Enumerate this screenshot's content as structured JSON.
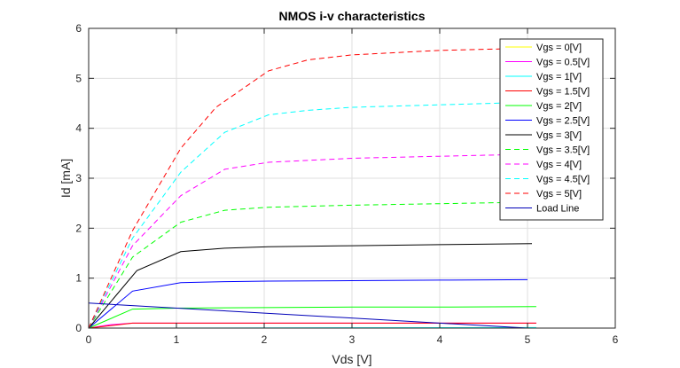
{
  "chart_data": {
    "type": "line",
    "title": "NMOS i-v characteristics",
    "xlabel": "Vds [V]",
    "ylabel": "Id [mA]",
    "xlim": [
      0,
      6
    ],
    "ylim": [
      0,
      6
    ],
    "xticks": [
      "0",
      "1",
      "2",
      "3",
      "4",
      "5",
      "6"
    ],
    "yticks": [
      "0",
      "1",
      "2",
      "3",
      "4",
      "5",
      "6"
    ],
    "grid": true,
    "legend_position": "top-right",
    "series": [
      {
        "name": "Vgs = 0[V]",
        "color": "#ffff00",
        "style": "solid",
        "x": [
          0,
          5.1
        ],
        "y": [
          0,
          0
        ]
      },
      {
        "name": "Vgs = 0.5[V]",
        "color": "#ff00ff",
        "style": "solid",
        "x": [
          0,
          0.25,
          0.5,
          1.0,
          2.0,
          3.0,
          4.0,
          5.1
        ],
        "y": [
          0,
          0.07,
          0.1,
          0.1,
          0.1,
          0.1,
          0.1,
          0.1
        ]
      },
      {
        "name": "Vgs = 1[V]",
        "color": "#00ffff",
        "style": "solid",
        "x": [
          0,
          5.1
        ],
        "y": [
          0,
          0.01
        ]
      },
      {
        "name": "Vgs = 1.5[V]",
        "color": "#ff0000",
        "style": "solid",
        "x": [
          0,
          0.5,
          1.0,
          5.1
        ],
        "y": [
          0,
          0.1,
          0.1,
          0.1
        ]
      },
      {
        "name": "Vgs = 2[V]",
        "color": "#00ff00",
        "style": "solid",
        "x": [
          0,
          0.5,
          1.0,
          2.0,
          3.0,
          4.0,
          5.1
        ],
        "y": [
          0,
          0.38,
          0.4,
          0.41,
          0.42,
          0.42,
          0.43
        ]
      },
      {
        "name": "Vgs = 2.5[V]",
        "color": "#0000ff",
        "style": "solid",
        "x": [
          0,
          0.5,
          1.05,
          1.55,
          2.05,
          3.0,
          4.0,
          5.0
        ],
        "y": [
          0,
          0.74,
          0.91,
          0.93,
          0.94,
          0.95,
          0.96,
          0.97
        ]
      },
      {
        "name": "Vgs = 3[V]",
        "color": "#000000",
        "style": "solid",
        "x": [
          0,
          0.55,
          1.05,
          1.55,
          2.05,
          3.0,
          4.0,
          5.05
        ],
        "y": [
          0,
          1.15,
          1.53,
          1.6,
          1.63,
          1.65,
          1.67,
          1.69
        ]
      },
      {
        "name": "Vgs = 3.5[V]",
        "color": "#00ff00",
        "style": "dashed",
        "x": [
          0,
          0.5,
          1.05,
          1.55,
          2.05,
          3.0,
          4.0,
          5.0
        ],
        "y": [
          0,
          1.42,
          2.12,
          2.36,
          2.42,
          2.46,
          2.49,
          2.52
        ]
      },
      {
        "name": "Vgs = 4[V]",
        "color": "#ff00ff",
        "style": "dashed",
        "x": [
          0,
          0.5,
          1.05,
          1.55,
          2.05,
          3.0,
          4.0,
          5.0
        ],
        "y": [
          0,
          1.65,
          2.65,
          3.18,
          3.32,
          3.4,
          3.44,
          3.48
        ]
      },
      {
        "name": "Vgs = 4.5[V]",
        "color": "#00ffff",
        "style": "dashed",
        "x": [
          0,
          0.5,
          1.05,
          1.55,
          2.05,
          2.5,
          3.0,
          4.0,
          5.0
        ],
        "y": [
          0,
          1.8,
          3.12,
          3.92,
          4.27,
          4.36,
          4.42,
          4.47,
          4.52
        ]
      },
      {
        "name": "Vgs = 5[V]",
        "color": "#ff0000",
        "style": "dashed",
        "x": [
          0,
          0.5,
          1.05,
          1.45,
          2.05,
          2.5,
          3.0,
          4.0,
          5.0
        ],
        "y": [
          0,
          1.95,
          3.6,
          4.42,
          5.15,
          5.37,
          5.47,
          5.56,
          5.6
        ]
      },
      {
        "name": "Load Line",
        "color": "#0000b8",
        "style": "solid",
        "x": [
          0,
          5.0
        ],
        "y": [
          0.5,
          0
        ]
      }
    ]
  }
}
